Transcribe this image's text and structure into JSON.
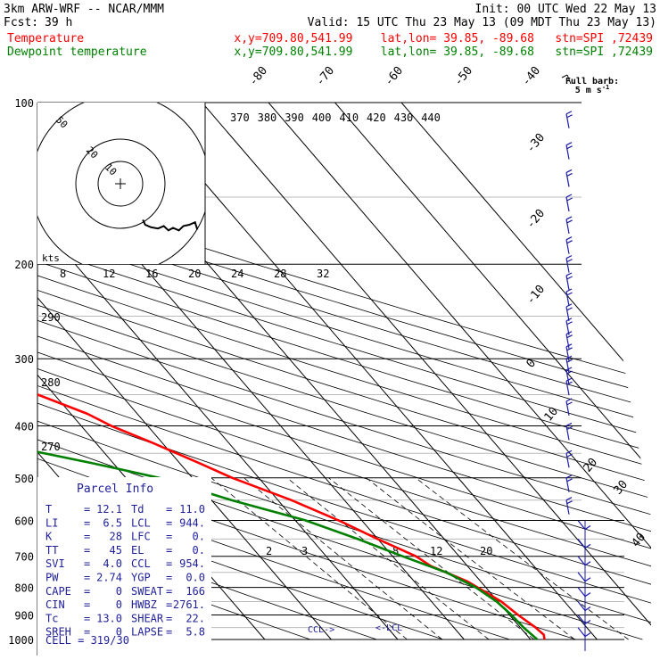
{
  "header": {
    "model": "3km ARW-WRF -- NCAR/MMM",
    "init": "Init: 00 UTC Wed 22 May 13",
    "fcst_label": "Fcst:",
    "fcst_value": "39 h",
    "valid": "Valid: 15 UTC Thu 23 May 13 (09 MDT Thu 23 May 13)",
    "temperature_label": "Temperature",
    "dewpoint_label": "Dewpoint temperature",
    "station_line_temp": "x,y=709.80,541.99    lat,lon= 39.85, -89.68   stn=SPI ,72439",
    "station_line_dew": "x,y=709.80,541.99    lat,lon= 39.85, -89.68   stn=SPI ,72439"
  },
  "colors": {
    "temperature": "#ff0000",
    "dewpoint": "#008000",
    "wind_barb": "#1a1aa6",
    "parcel_text": "#1f1f9a",
    "grid": "#000000"
  },
  "wind_legend": {
    "title": "Full barb:",
    "value": "5 m s",
    "unit_sup": "-1"
  },
  "hodograph": {
    "unit": "kts",
    "ring_labels": [
      "10",
      "20",
      "50"
    ],
    "trace_uv": [
      [
        0.8,
        -1.2
      ],
      [
        1.2,
        -2.0
      ],
      [
        2.2,
        -2.4
      ],
      [
        3.4,
        -2.6
      ],
      [
        4.4,
        -2.2
      ],
      [
        5.2,
        -2.9
      ],
      [
        6.0,
        -2.5
      ],
      [
        7.0,
        -2.9
      ],
      [
        7.8,
        -2.2
      ],
      [
        8.8,
        -2.0
      ],
      [
        9.8,
        -1.6
      ],
      [
        10.2,
        -2.8
      ]
    ]
  },
  "parcel_info": {
    "title": "Parcel Info",
    "rows": [
      {
        "l1": "T",
        "v1": "12.1",
        "l2": "Td",
        "v2": "11.0"
      },
      {
        "l1": "LI",
        "v1": "6.5",
        "l2": "LCL",
        "v2": "944."
      },
      {
        "l1": "K",
        "v1": "28",
        "l2": "LFC",
        "v2": "0."
      },
      {
        "l1": "TT",
        "v1": "45",
        "l2": "EL",
        "v2": "0."
      },
      {
        "l1": "SVI",
        "v1": "4.0",
        "l2": "CCL",
        "v2": "954."
      },
      {
        "l1": "PW",
        "v1": "2.74",
        "l2": "YGP",
        "v2": "0.0"
      },
      {
        "l1": "CAPE",
        "v1": "0",
        "l2": "SWEAT",
        "v2": "166"
      },
      {
        "l1": "CIN",
        "v1": "0",
        "l2": "HWBZ",
        "v2": "2761."
      },
      {
        "l1": "Tc",
        "v1": "13.0",
        "l2": "SHEAR",
        "v2": "22."
      },
      {
        "l1": "SREH",
        "v1": "0",
        "l2": "LAPSE",
        "v2": "5.8"
      }
    ],
    "cell": "CELL = 319/30"
  },
  "levels": {
    "ccl": "CCL",
    "lcl": "LCL"
  },
  "chart_data": {
    "type": "line",
    "diagram": "skew-T log-P",
    "y_axis": {
      "scale": "log",
      "range": [
        1000,
        100
      ],
      "ticks": [
        100,
        200,
        300,
        400,
        500,
        600,
        700,
        800,
        900,
        1000
      ]
    },
    "isotherm_labels": [
      -80,
      -70,
      -60,
      -50,
      -40,
      -30,
      -20,
      -10,
      0,
      10,
      20,
      30,
      40
    ],
    "theta_labels": [
      "370",
      "380",
      "390",
      "400",
      "410",
      "420",
      "430",
      "440"
    ],
    "mixing_ratio_labels": [
      "8",
      "12",
      "16",
      "20",
      "24",
      "28",
      "32"
    ],
    "mixing_ratio_labels_low": [
      "2",
      "3",
      "8",
      "12",
      "20"
    ],
    "height_labels": [
      "290",
      "280",
      "270"
    ],
    "series": [
      {
        "name": "Temperature",
        "color": "#ff0000",
        "points": [
          [
            100,
            -54
          ],
          [
            110,
            -55
          ],
          [
            130,
            -55
          ],
          [
            150,
            -55
          ],
          [
            170,
            -56
          ],
          [
            180,
            -57.5
          ],
          [
            190,
            -60
          ],
          [
            200,
            -60.5
          ],
          [
            210,
            -59.5
          ],
          [
            240,
            -55
          ],
          [
            270,
            -49
          ],
          [
            300,
            -43
          ],
          [
            330,
            -37.5
          ],
          [
            350,
            -32.5
          ],
          [
            380,
            -27.5
          ],
          [
            400,
            -25.5
          ],
          [
            430,
            -21.5
          ],
          [
            470,
            -17
          ],
          [
            500,
            -14
          ],
          [
            550,
            -8
          ],
          [
            600,
            -3.5
          ],
          [
            650,
            0
          ],
          [
            700,
            3.5
          ],
          [
            730,
            4.5
          ],
          [
            780,
            8
          ],
          [
            850,
            10.5
          ],
          [
            900,
            11.3
          ],
          [
            950,
            12.3
          ],
          [
            980,
            12.6
          ],
          [
            1000,
            12.1
          ]
        ]
      },
      {
        "name": "Dewpoint temperature",
        "color": "#008000",
        "points": [
          [
            100,
            -61
          ],
          [
            120,
            -69
          ],
          [
            130,
            -71.5
          ],
          [
            150,
            -80
          ],
          [
            160,
            -78
          ],
          [
            180,
            -80
          ],
          [
            200,
            -77.5
          ],
          [
            220,
            -76
          ],
          [
            250,
            -74
          ],
          [
            280,
            -72.5
          ],
          [
            300,
            -71
          ],
          [
            330,
            -71.5
          ],
          [
            350,
            -58
          ],
          [
            370,
            -52
          ],
          [
            400,
            -47
          ],
          [
            430,
            -45.5
          ],
          [
            470,
            -33
          ],
          [
            500,
            -25
          ],
          [
            550,
            -17
          ],
          [
            600,
            -8.5
          ],
          [
            650,
            -3
          ],
          [
            700,
            1.5
          ],
          [
            750,
            6
          ],
          [
            800,
            8.5
          ],
          [
            850,
            9.8
          ],
          [
            900,
            10.3
          ],
          [
            950,
            10.5
          ],
          [
            1000,
            11.0
          ]
        ]
      }
    ],
    "wind_barbs_pressure": [
      105,
      120,
      135,
      150,
      165,
      180,
      195,
      210,
      225,
      240,
      255,
      270,
      285,
      300,
      315,
      330,
      360,
      400,
      450,
      500,
      550,
      600,
      650,
      700,
      750,
      800,
      850,
      900,
      950
    ]
  }
}
